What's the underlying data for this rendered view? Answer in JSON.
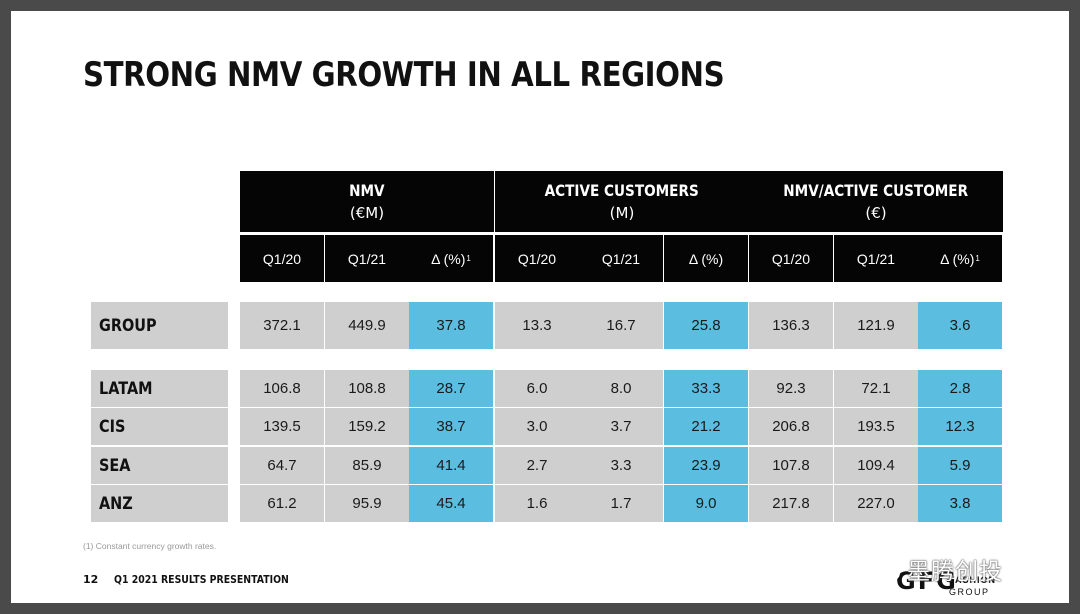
{
  "title": "STRONG NMV GROWTH IN ALL REGIONS",
  "columns": [
    {
      "main": "NMV",
      "unit": "(€M)",
      "sub": [
        "Q1/20",
        "Q1/21",
        "Δ (%)"
      ],
      "footnote_mark": "1"
    },
    {
      "main": "ACTIVE CUSTOMERS",
      "unit": "(M)",
      "sub": [
        "Q1/20",
        "Q1/21",
        "Δ (%)"
      ],
      "footnote_mark": ""
    },
    {
      "main": "NMV/ACTIVE CUSTOMER",
      "unit": "(€)",
      "sub": [
        "Q1/20",
        "Q1/21",
        "Δ (%)"
      ],
      "footnote_mark": "1"
    }
  ],
  "rows": [
    {
      "label": "GROUP",
      "values": [
        "372.1",
        "449.9",
        "37.8",
        "13.3",
        "16.7",
        "25.8",
        "136.3",
        "121.9",
        "3.6"
      ]
    },
    {
      "label": "LATAM",
      "values": [
        "106.8",
        "108.8",
        "28.7",
        "6.0",
        "8.0",
        "33.3",
        "92.3",
        "72.1",
        "2.8"
      ]
    },
    {
      "label": "CIS",
      "values": [
        "139.5",
        "159.2",
        "38.7",
        "3.0",
        "3.7",
        "21.2",
        "206.8",
        "193.5",
        "12.3"
      ]
    },
    {
      "label": "SEA",
      "values": [
        "64.7",
        "85.9",
        "41.4",
        "2.7",
        "3.3",
        "23.9",
        "107.8",
        "109.4",
        "5.9"
      ]
    },
    {
      "label": "ANZ",
      "values": [
        "61.2",
        "95.9",
        "45.4",
        "1.6",
        "1.7",
        "9.0",
        "217.8",
        "227.0",
        "3.8"
      ]
    }
  ],
  "footnote": "(1)    Constant currency growth rates.",
  "footer": {
    "page": "12",
    "text": "Q1 2021 RESULTS PRESENTATION"
  },
  "logo": {
    "mark": "GFG",
    "line1": "FASHION",
    "line2": "GROUP"
  },
  "watermark": "墨腾创投",
  "colors": {
    "header": "#050505",
    "cell": "#cfcfcf",
    "delta": "#5bbde0"
  }
}
